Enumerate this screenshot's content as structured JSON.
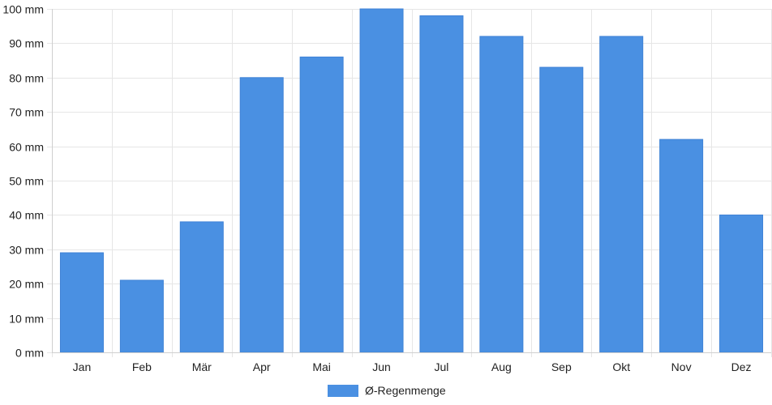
{
  "chart_data": {
    "type": "bar",
    "categories": [
      "Jan",
      "Feb",
      "Mär",
      "Apr",
      "Mai",
      "Jun",
      "Jul",
      "Aug",
      "Sep",
      "Okt",
      "Nov",
      "Dez"
    ],
    "series": [
      {
        "name": "Ø-Regenmenge",
        "values": [
          29,
          21,
          38,
          80,
          86,
          100,
          98,
          92,
          83,
          92,
          62,
          40
        ],
        "color": "#4a90e2"
      }
    ],
    "ylim": [
      0,
      100
    ],
    "yticks": [
      "0 mm",
      "10 mm",
      "20 mm",
      "30 mm",
      "40 mm",
      "50 mm",
      "60 mm",
      "70 mm",
      "80 mm",
      "90 mm",
      "100 mm"
    ],
    "grid": true,
    "legend_position": "bottom-center"
  }
}
